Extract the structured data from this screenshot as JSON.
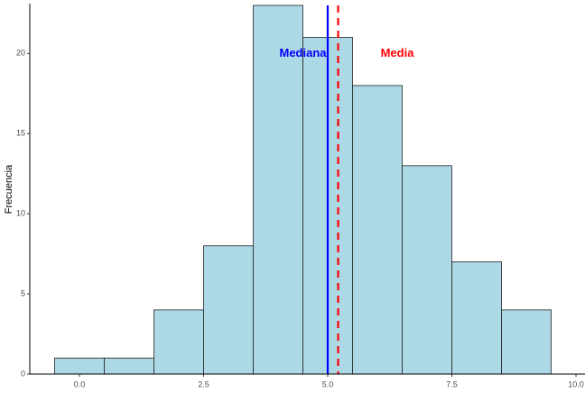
{
  "chart_data": {
    "type": "bar",
    "subtype": "histogram",
    "title": "",
    "xlabel": "",
    "ylabel": "Frecuencia",
    "xlim": [
      -1.0,
      10.0
    ],
    "ylim": [
      0,
      23
    ],
    "bin_width": 1.0,
    "bins": [
      {
        "center": 0,
        "count": 1
      },
      {
        "center": 1,
        "count": 1
      },
      {
        "center": 2,
        "count": 4
      },
      {
        "center": 3,
        "count": 8
      },
      {
        "center": 4,
        "count": 23
      },
      {
        "center": 5,
        "count": 21
      },
      {
        "center": 6,
        "count": 18
      },
      {
        "center": 7,
        "count": 13
      },
      {
        "center": 8,
        "count": 7
      },
      {
        "center": 9,
        "count": 4
      }
    ],
    "x_ticks": [
      0.0,
      2.5,
      5.0,
      7.5,
      10.0
    ],
    "x_tick_labels": [
      "0.0",
      "2.5",
      "5.0",
      "7.5",
      "10.0"
    ],
    "y_ticks": [
      0,
      5,
      10,
      15,
      20
    ],
    "y_tick_labels": [
      "0",
      "5",
      "10",
      "15",
      "20"
    ],
    "grid": false,
    "bar_fill": "#add8e6",
    "bar_stroke": "#222222",
    "reference_lines": [
      {
        "label": "Mediana",
        "value": 5.0,
        "color": "#0000ff",
        "style": "solid"
      },
      {
        "label": "Media",
        "value": 5.21,
        "color": "#ff0000",
        "style": "dashed"
      }
    ],
    "annotations": [
      {
        "text": "Mediana",
        "x": 4.5,
        "y": 20,
        "color": "#0000ff"
      },
      {
        "text": "Media",
        "x": 6.4,
        "y": 20,
        "color": "#ff0000"
      }
    ]
  }
}
